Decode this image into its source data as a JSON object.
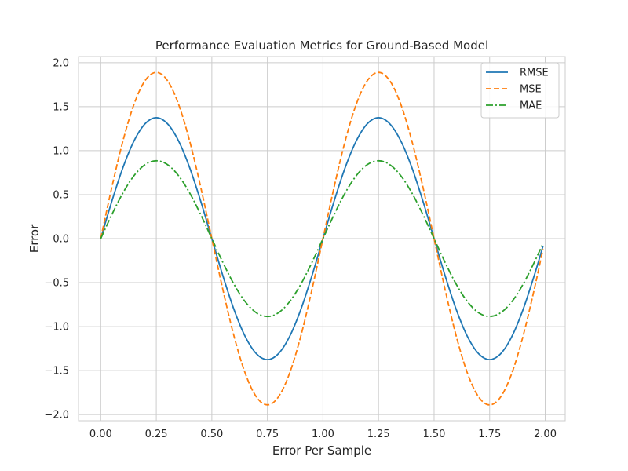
{
  "chart_data": {
    "type": "line",
    "title": "Performance Evaluation Metrics for Ground-Based Model",
    "xlabel": "Error Per Sample",
    "ylabel": "Error",
    "xlim": [
      -0.1,
      2.09
    ],
    "ylim": [
      -2.07,
      2.07
    ],
    "xticks": [
      0.0,
      0.25,
      0.5,
      0.75,
      1.0,
      1.25,
      1.5,
      1.75,
      2.0
    ],
    "xtick_labels": [
      "0.00",
      "0.25",
      "0.50",
      "0.75",
      "1.00",
      "1.25",
      "1.50",
      "1.75",
      "2.00"
    ],
    "yticks": [
      -2.0,
      -1.5,
      -1.0,
      -0.5,
      0.0,
      0.5,
      1.0,
      1.5,
      2.0
    ],
    "ytick_labels": [
      "−2.0",
      "−1.5",
      "−1.0",
      "−0.5",
      "0.0",
      "0.5",
      "1.0",
      "1.5",
      "2.0"
    ],
    "grid": true,
    "legend_position": "top-right",
    "x": [
      0.0,
      0.05,
      0.1,
      0.15,
      0.2,
      0.25,
      0.3,
      0.35,
      0.4,
      0.45,
      0.5,
      0.55,
      0.6,
      0.65,
      0.7,
      0.75,
      0.8,
      0.85,
      0.9,
      0.95,
      1.0,
      1.05,
      1.1,
      1.15,
      1.2,
      1.25,
      1.3,
      1.35,
      1.4,
      1.45,
      1.5,
      1.55,
      1.6,
      1.65,
      1.7,
      1.75,
      1.8,
      1.85,
      1.9,
      1.95,
      1.99
    ],
    "series": [
      {
        "name": "RMSE",
        "color": "#1f77b4",
        "dash": "solid",
        "values": [
          0.0,
          0.425,
          0.808,
          1.112,
          1.307,
          1.375,
          1.307,
          1.112,
          0.808,
          0.425,
          0.0,
          -0.425,
          -0.808,
          -1.112,
          -1.307,
          -1.375,
          -1.307,
          -1.112,
          -0.808,
          -0.425,
          0.0,
          0.425,
          0.808,
          1.112,
          1.307,
          1.375,
          1.307,
          1.112,
          0.808,
          0.425,
          0.0,
          -0.425,
          -0.808,
          -1.112,
          -1.307,
          -1.375,
          -1.307,
          -1.112,
          -0.808,
          -0.425,
          -0.086
        ]
      },
      {
        "name": "MSE",
        "color": "#ff7f0e",
        "dash": "dashed",
        "values": [
          0.0,
          0.584,
          1.111,
          1.529,
          1.798,
          1.89,
          1.798,
          1.529,
          1.111,
          0.584,
          0.0,
          -0.584,
          -1.111,
          -1.529,
          -1.798,
          -1.89,
          -1.798,
          -1.529,
          -1.111,
          -0.584,
          0.0,
          0.584,
          1.111,
          1.529,
          1.798,
          1.89,
          1.798,
          1.529,
          1.111,
          0.584,
          0.0,
          -0.584,
          -1.111,
          -1.529,
          -1.798,
          -1.89,
          -1.798,
          -1.529,
          -1.111,
          -0.584,
          -0.119
        ]
      },
      {
        "name": "MAE",
        "color": "#2ca02c",
        "dash": "dashdot",
        "values": [
          0.0,
          0.273,
          0.52,
          0.716,
          0.842,
          0.885,
          0.842,
          0.716,
          0.52,
          0.273,
          0.0,
          -0.273,
          -0.52,
          -0.716,
          -0.842,
          -0.885,
          -0.842,
          -0.716,
          -0.52,
          -0.273,
          0.0,
          0.273,
          0.52,
          0.716,
          0.842,
          0.885,
          0.842,
          0.716,
          0.52,
          0.273,
          0.0,
          -0.273,
          -0.52,
          -0.716,
          -0.842,
          -0.885,
          -0.842,
          -0.716,
          -0.52,
          -0.273,
          -0.056
        ]
      }
    ]
  }
}
